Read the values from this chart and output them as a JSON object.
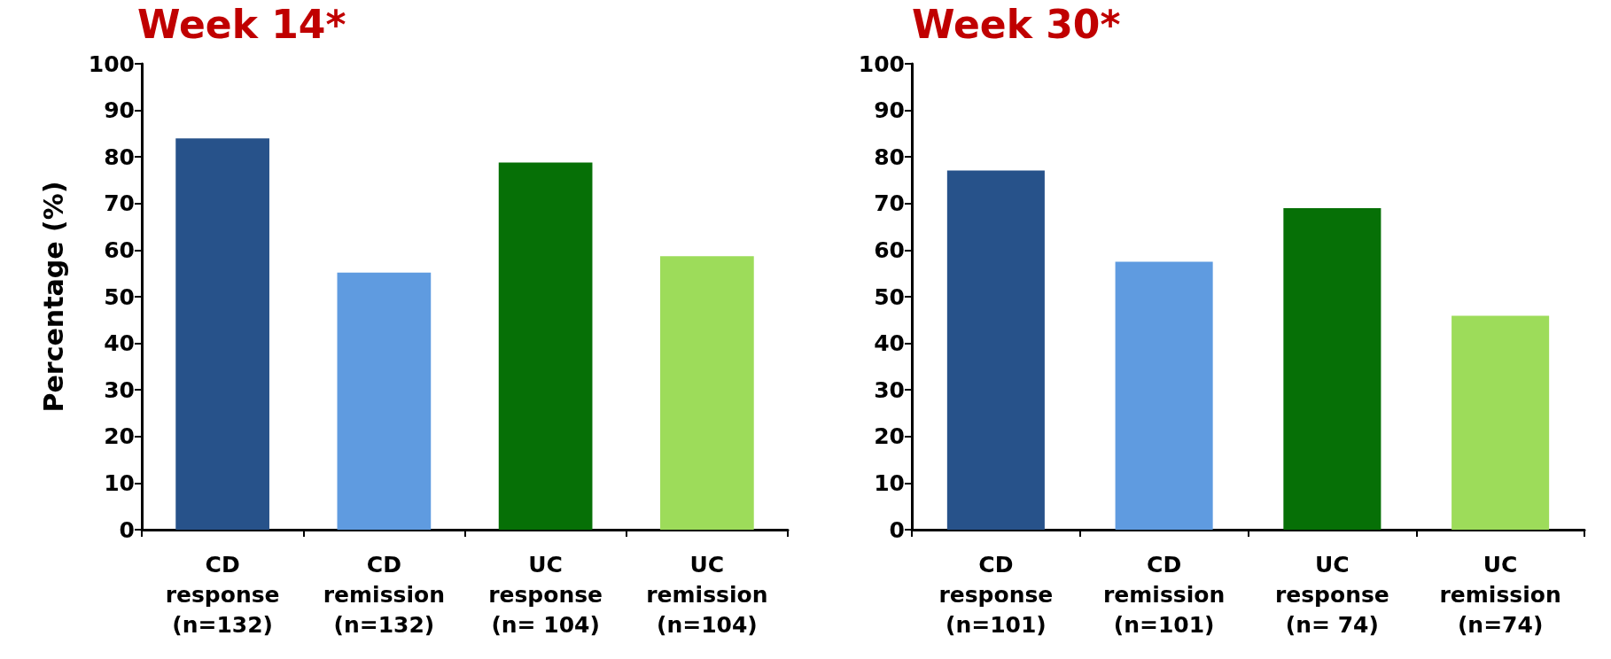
{
  "chart_data": [
    {
      "type": "bar",
      "title": "Week 14*",
      "ylabel": "Percentage (%)",
      "categories": [
        "CD\nresponse\n(n=132)",
        "CD\nremission\n(n=132)",
        "UC\nresponse\n(n= 104)",
        "UC\nremission\n(n=104)"
      ],
      "values": [
        84.0,
        55.2,
        78.8,
        58.7
      ],
      "colors": [
        "#27528a",
        "#5f9be0",
        "#067006",
        "#9ddc5a"
      ],
      "ylim": [
        0,
        100
      ],
      "yticks": [
        0,
        10,
        20,
        30,
        40,
        50,
        60,
        70,
        80,
        90,
        100
      ],
      "grid": false
    },
    {
      "type": "bar",
      "title": "Week 30*",
      "categories": [
        "CD\nresponse\n(n=101)",
        "CD\nremission\n(n=101)",
        "UC\nresponse\n(n= 74)",
        "UC\nremission\n(n=74)"
      ],
      "values": [
        77.1,
        57.5,
        69.0,
        45.9
      ],
      "colors": [
        "#27528a",
        "#5f9be0",
        "#067006",
        "#9ddc5a"
      ],
      "ylim": [
        0,
        100
      ],
      "yticks": [
        0,
        10,
        20,
        30,
        40,
        50,
        60,
        70,
        80,
        90,
        100
      ],
      "grid": false
    }
  ]
}
